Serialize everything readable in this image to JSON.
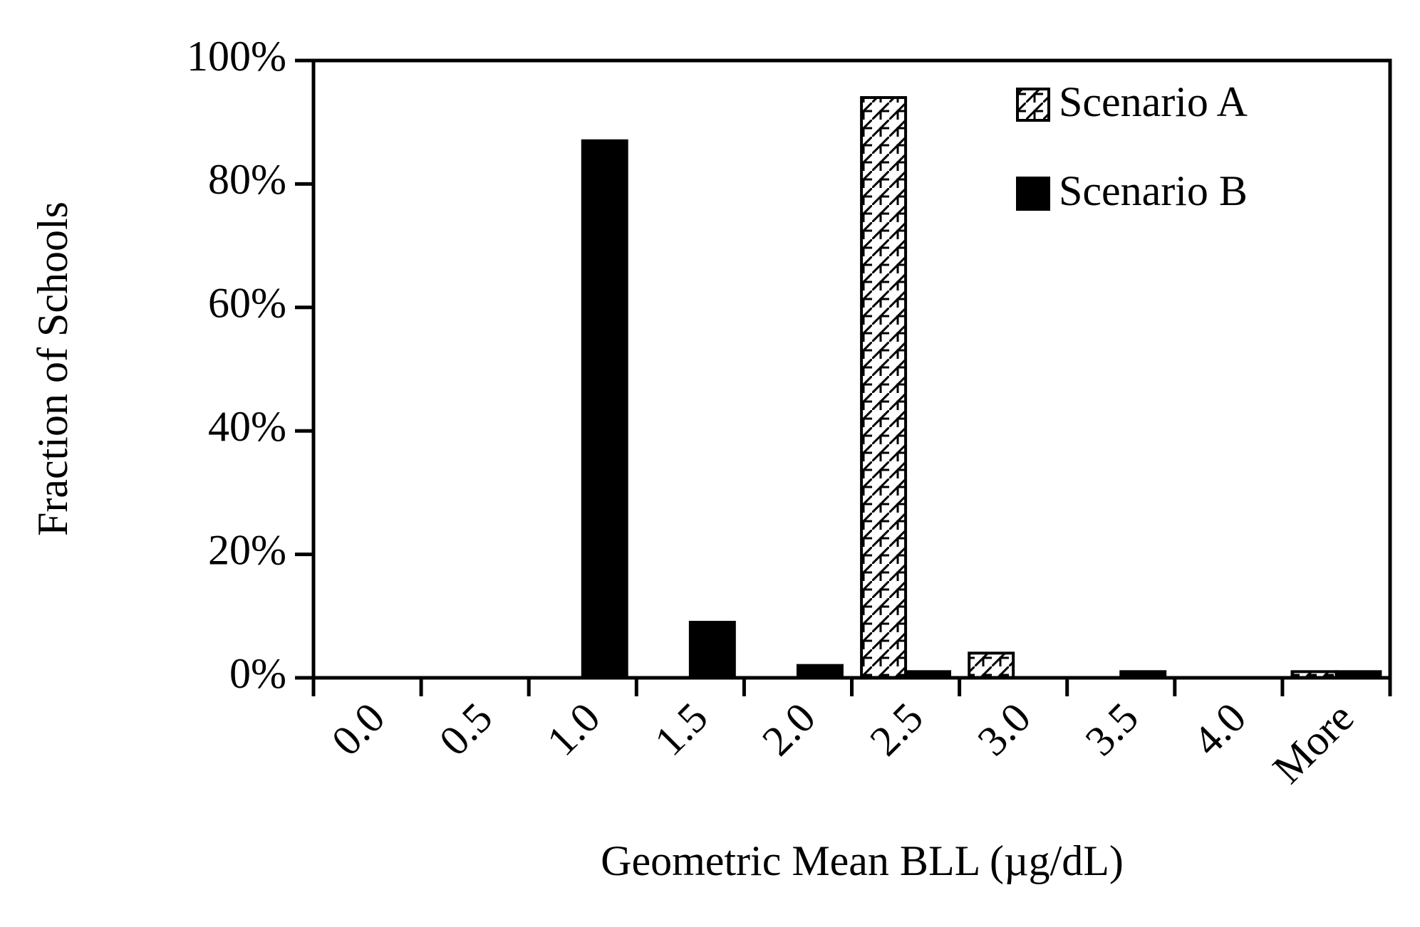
{
  "chart_data": {
    "type": "bar",
    "categories": [
      "0.0",
      "0.5",
      "1.0",
      "1.5",
      "2.0",
      "2.5",
      "3.0",
      "3.5",
      "4.0",
      "More"
    ],
    "series": [
      {
        "name": "Scenario A",
        "color": "#ffffff",
        "hatch": true,
        "values": [
          0,
          0,
          0,
          0,
          0,
          94,
          4,
          0,
          0,
          1
        ]
      },
      {
        "name": "Scenario B",
        "color": "#000000",
        "hatch": false,
        "values": [
          0,
          0,
          87,
          9,
          2,
          1,
          0,
          1,
          0,
          1
        ]
      }
    ],
    "xlabel": "Geometric Mean BLL (µg/dL)",
    "ylabel": "Fraction of Schools",
    "ylim": [
      0,
      100
    ],
    "yticks": [
      {
        "value": 0,
        "label": "0%"
      },
      {
        "value": 20,
        "label": "20%"
      },
      {
        "value": 40,
        "label": "40%"
      },
      {
        "value": 60,
        "label": "60%"
      },
      {
        "value": 80,
        "label": "80%"
      },
      {
        "value": 100,
        "label": "100%"
      }
    ],
    "grid": false,
    "legend": "top-right"
  }
}
